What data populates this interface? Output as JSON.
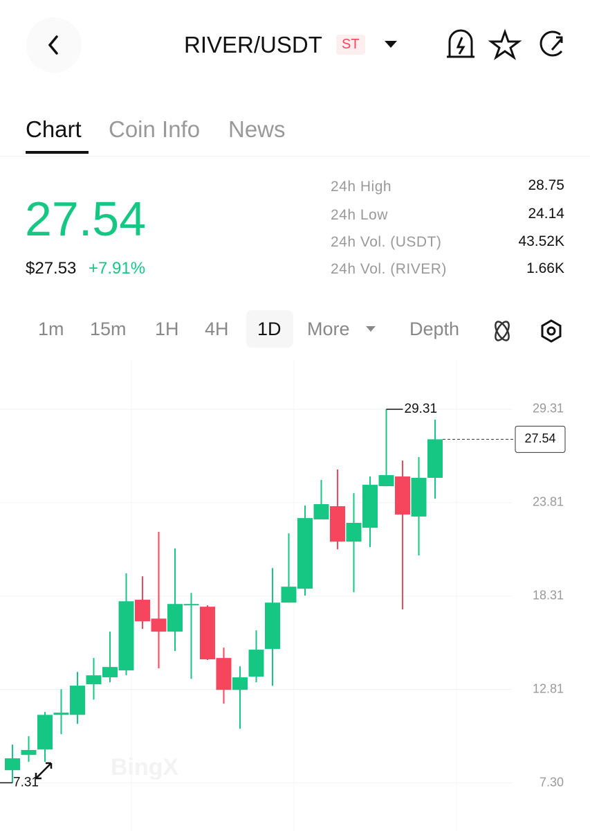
{
  "header": {
    "pair": "RIVER/USDT",
    "badge": "ST"
  },
  "tabs": [
    "Chart",
    "Coin Info",
    "News"
  ],
  "price": {
    "last": 27.54,
    "usd": "$27.53",
    "change": "+7.91%"
  },
  "stats": [
    {
      "label": "24h High",
      "value": 28.75
    },
    {
      "label": "24h Low",
      "value": 24.14
    },
    {
      "label": "24h Vol. (USDT)",
      "value": "43.52K"
    },
    {
      "label": "24h Vol. (RIVER)",
      "value": "1.66K"
    }
  ],
  "timeframes": [
    "1m",
    "15m",
    "1H",
    "4H",
    "1D",
    "More",
    "Depth"
  ],
  "chart_data": {
    "type": "candlestick",
    "up_color": "#16c784",
    "down_color": "#f6465d",
    "open": [
      8.05,
      8.95,
      9.27,
      11.31,
      11.31,
      13.11,
      13.52,
      13.93,
      18.09,
      16.98,
      16.21,
      17.76,
      17.68,
      14.66,
      12.78,
      13.56,
      15.19,
      17.92,
      18.74,
      22.82,
      23.6,
      21.51,
      22.33,
      24.78,
      25.35,
      22.99,
      25.27
    ],
    "high": [
      9.56,
      10.05,
      11.48,
      12.82,
      13.84,
      14.66,
      16.21,
      19.64,
      19.47,
      22.09,
      21.11,
      18.49,
      17.76,
      15.27,
      14.17,
      16.29,
      19.96,
      22.0,
      23.64,
      25.15,
      25.76,
      24.37,
      25.35,
      29.31,
      26.29,
      26.49,
      28.7
    ],
    "low": [
      7.31,
      8.54,
      8.54,
      10.17,
      10.78,
      12.21,
      13.23,
      13.64,
      16.37,
      14.05,
      15.07,
      13.43,
      14.54,
      11.97,
      10.49,
      13.23,
      13.02,
      17.92,
      18.33,
      22.82,
      21.06,
      18.53,
      21.19,
      24.78,
      17.52,
      20.7,
      24.04
    ],
    "close": [
      8.75,
      9.24,
      11.31,
      11.44,
      13.03,
      13.64,
      14.13,
      18.0,
      16.82,
      16.21,
      17.84,
      17.84,
      14.58,
      12.78,
      13.52,
      15.15,
      17.92,
      18.86,
      22.9,
      23.72,
      21.51,
      22.62,
      24.86,
      25.43,
      23.11,
      25.27,
      27.54
    ],
    "ylim": [
      5,
      32
    ],
    "yticks": [
      29.31,
      23.81,
      18.31,
      12.81,
      {
        "value": 7.3,
        "label": "7.30"
      }
    ],
    "grid": true,
    "high_marker": 29.31,
    "low_marker": 7.31,
    "last_price": 27.54
  }
}
